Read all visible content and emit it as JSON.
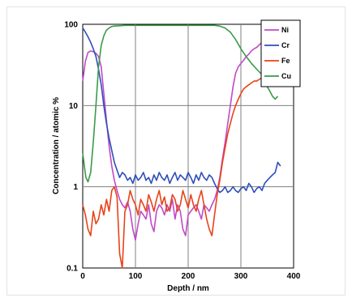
{
  "chart_data": {
    "type": "line",
    "xlabel": "Depth / nm",
    "ylabel": "Concentration / atomic %",
    "xlim": [
      0,
      400
    ],
    "ylim": [
      0.1,
      100
    ],
    "y_scale": "log",
    "grid": true,
    "legend_position": "top-right",
    "x_ticks": [
      "0",
      "100",
      "200",
      "300",
      "400"
    ],
    "y_ticks": [
      "0.1",
      "1",
      "10",
      "100"
    ],
    "series": [
      {
        "name": "Ni",
        "color": "#c04ac8",
        "x": [
          0,
          5,
          10,
          15,
          20,
          25,
          30,
          35,
          40,
          45,
          50,
          55,
          60,
          65,
          70,
          75,
          80,
          85,
          90,
          95,
          100,
          105,
          110,
          115,
          120,
          125,
          130,
          135,
          140,
          145,
          150,
          155,
          160,
          165,
          170,
          175,
          180,
          185,
          190,
          195,
          200,
          205,
          210,
          215,
          220,
          225,
          230,
          235,
          240,
          245,
          250,
          255,
          260,
          265,
          270,
          275,
          280,
          285,
          290,
          295,
          300,
          305,
          310,
          315,
          320,
          325,
          330,
          335,
          340,
          345,
          350
        ],
        "y": [
          20,
          35,
          45,
          47,
          46,
          44,
          40,
          30,
          14,
          6.5,
          3.2,
          1.8,
          1.2,
          0.9,
          0.7,
          0.6,
          0.55,
          0.65,
          0.5,
          0.3,
          0.22,
          0.35,
          0.5,
          0.45,
          0.4,
          0.6,
          0.35,
          0.28,
          0.5,
          0.6,
          0.55,
          0.45,
          0.6,
          0.5,
          0.7,
          0.4,
          0.6,
          0.5,
          0.3,
          0.25,
          0.45,
          0.5,
          0.55,
          0.6,
          0.5,
          0.4,
          0.6,
          0.55,
          0.5,
          0.6,
          0.7,
          0.9,
          1.3,
          2.2,
          3.5,
          6.0,
          10,
          17,
          25,
          30,
          33,
          36,
          40,
          43,
          47,
          50,
          52,
          56,
          60,
          60,
          60
        ]
      },
      {
        "name": "Cr",
        "color": "#2f4fb8",
        "x": [
          0,
          5,
          10,
          15,
          20,
          25,
          30,
          35,
          40,
          45,
          50,
          55,
          60,
          65,
          70,
          75,
          80,
          85,
          90,
          95,
          100,
          105,
          110,
          115,
          120,
          125,
          130,
          135,
          140,
          145,
          150,
          155,
          160,
          165,
          170,
          175,
          180,
          185,
          190,
          195,
          200,
          205,
          210,
          215,
          220,
          225,
          230,
          235,
          240,
          245,
          250,
          255,
          260,
          265,
          270,
          275,
          280,
          285,
          290,
          295,
          300,
          305,
          310,
          315,
          320,
          325,
          330,
          335,
          340,
          345,
          350,
          355,
          360,
          365,
          370,
          375
        ],
        "y": [
          90,
          80,
          70,
          60,
          50,
          40,
          28,
          18,
          10,
          6,
          4,
          2.8,
          2.0,
          1.6,
          1.3,
          1.5,
          1.4,
          1.2,
          1.3,
          1.1,
          1.4,
          1.2,
          1.3,
          1.5,
          1.2,
          1.3,
          1.1,
          1.4,
          1.2,
          1.5,
          1.3,
          1.2,
          1.4,
          1.1,
          1.3,
          1.5,
          1.2,
          1.4,
          1.3,
          1.2,
          1.5,
          1.3,
          1.1,
          1.4,
          1.2,
          1.5,
          1.3,
          1.2,
          1.4,
          1.3,
          1.1,
          0.95,
          0.85,
          0.9,
          1.0,
          0.85,
          0.9,
          1.0,
          0.9,
          0.85,
          0.95,
          1.0,
          0.9,
          1.1,
          1.0,
          0.85,
          0.95,
          1.0,
          0.9,
          1.1,
          1.2,
          1.3,
          1.4,
          1.5,
          2.0,
          1.8
        ]
      },
      {
        "name": "Fe",
        "color": "#e8431a",
        "x": [
          0,
          5,
          10,
          15,
          20,
          25,
          30,
          35,
          40,
          45,
          50,
          55,
          60,
          65,
          70,
          75,
          80,
          85,
          90,
          95,
          100,
          105,
          110,
          115,
          120,
          125,
          130,
          135,
          140,
          145,
          150,
          155,
          160,
          165,
          170,
          175,
          180,
          185,
          190,
          195,
          200,
          205,
          210,
          215,
          220,
          225,
          230,
          235,
          240,
          245,
          250,
          255,
          260,
          265,
          270,
          275,
          280,
          285,
          290,
          295,
          300,
          305,
          310,
          315,
          320,
          325,
          330,
          335,
          340,
          345,
          350,
          355,
          360,
          365,
          370
        ],
        "y": [
          0.6,
          0.45,
          0.3,
          0.25,
          0.5,
          0.35,
          0.4,
          0.6,
          0.45,
          0.7,
          0.5,
          0.9,
          1.0,
          0.75,
          0.15,
          0.1,
          0.5,
          0.6,
          0.9,
          0.7,
          0.6,
          0.45,
          0.7,
          0.6,
          0.5,
          0.8,
          0.65,
          0.5,
          0.7,
          0.9,
          0.6,
          0.75,
          0.5,
          0.55,
          0.8,
          0.7,
          0.5,
          0.6,
          0.9,
          0.7,
          0.55,
          0.8,
          0.6,
          0.5,
          0.7,
          0.9,
          0.6,
          0.4,
          0.3,
          0.25,
          0.45,
          0.8,
          1.2,
          2.0,
          3.0,
          4.5,
          6.0,
          8.0,
          10,
          12,
          14,
          16,
          17,
          18,
          19,
          20,
          20,
          21,
          22,
          21,
          22,
          23,
          22,
          22,
          22
        ]
      },
      {
        "name": "Cu",
        "color": "#3c9a4a",
        "x": [
          0,
          3,
          6,
          10,
          15,
          20,
          25,
          30,
          35,
          40,
          45,
          50,
          55,
          60,
          70,
          80,
          100,
          150,
          200,
          250,
          260,
          270,
          280,
          290,
          300,
          310,
          320,
          330,
          340,
          345,
          350,
          355,
          360,
          365,
          370
        ],
        "y": [
          2.6,
          1.8,
          1.3,
          1.15,
          1.5,
          3.5,
          10,
          30,
          55,
          72,
          85,
          90,
          94,
          95,
          96,
          97,
          97,
          97,
          97,
          97,
          95,
          90,
          80,
          65,
          50,
          40,
          33,
          28,
          24,
          20,
          17,
          15,
          13,
          12,
          13
        ]
      }
    ]
  }
}
